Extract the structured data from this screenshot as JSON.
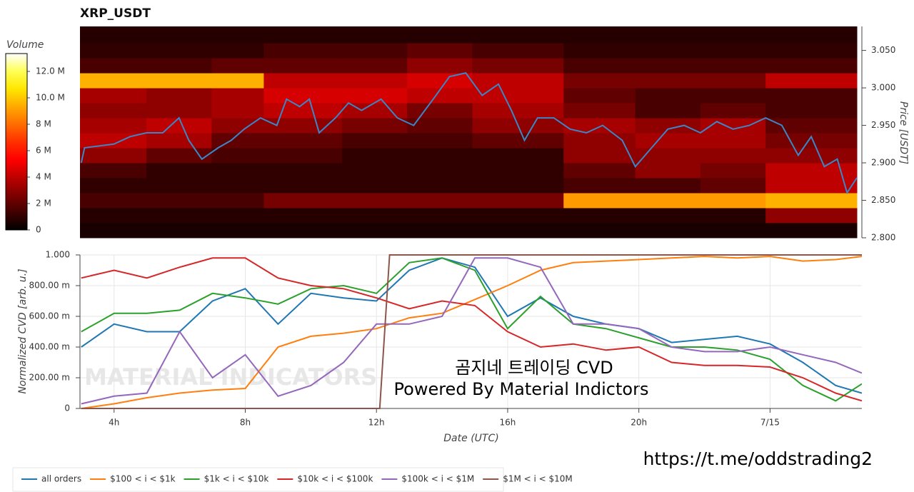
{
  "chart_data": [
    {
      "type": "heatmap",
      "title": "XRP_USDT",
      "ylabel": "Price [USDT]",
      "colorbar": {
        "title": "Volume",
        "zlim": [
          0,
          13.35
        ],
        "zticks": [
          0,
          {
            "value": 2,
            "label": "2 M"
          },
          {
            "value": 4,
            "label": "4 M"
          },
          {
            "value": 6,
            "label": "6 M"
          },
          {
            "value": 8,
            "label": "8 M"
          },
          {
            "value": 10,
            "label": "10.0 M"
          },
          {
            "value": 12,
            "label": "12.0 M"
          }
        ]
      },
      "xlim": [
        2.96,
        26.8
      ],
      "ylim": [
        2.8,
        3.082
      ],
      "yticks": [
        {
          "value": 2.8,
          "label": "2.800"
        },
        {
          "value": 2.85,
          "label": "2.850"
        },
        {
          "value": 2.9,
          "label": "2.900"
        },
        {
          "value": 2.95,
          "label": "2.950"
        },
        {
          "value": 3.0,
          "label": "3.000"
        },
        {
          "value": 3.05,
          "label": "3.050"
        }
      ],
      "x_bins": [
        2.96,
        5,
        7,
        8.6,
        11,
        13,
        15,
        17.8,
        20,
        22,
        24,
        26.8
      ],
      "y_bins": [
        2.8,
        2.82,
        2.84,
        2.86,
        2.88,
        2.9,
        2.92,
        2.94,
        2.96,
        2.98,
        3.0,
        3.02,
        3.04,
        3.06,
        3.082
      ],
      "z": [
        [
          0.5,
          0.5,
          0.5,
          0.5,
          0.5,
          0.5,
          0.5,
          0.5,
          0.5,
          0.5,
          0.5
        ],
        [
          0.8,
          0.8,
          0.8,
          0.8,
          0.8,
          0.8,
          0.8,
          0.8,
          0.8,
          0.8,
          3
        ],
        [
          1.5,
          1.5,
          1.5,
          2.5,
          2.5,
          2.5,
          2.5,
          9,
          9,
          9,
          9.5
        ],
        [
          1,
          1,
          1,
          1,
          1,
          1,
          1,
          1.5,
          1.5,
          2,
          4
        ],
        [
          1.5,
          1,
          1,
          1,
          1,
          1,
          1,
          2,
          3,
          2.5,
          4
        ],
        [
          3,
          2,
          1.5,
          1.5,
          1,
          1,
          1,
          3,
          3,
          3,
          3
        ],
        [
          4,
          3.5,
          2,
          2,
          1.5,
          1.5,
          2,
          3,
          3.5,
          3.5,
          2.5
        ],
        [
          3.5,
          4,
          3,
          3,
          2.5,
          2,
          3,
          3.5,
          3,
          3.5,
          2
        ],
        [
          3,
          3,
          3.5,
          4,
          3.5,
          2.5,
          3.5,
          2.5,
          1.5,
          2,
          1.5
        ],
        [
          3.5,
          3,
          3.5,
          4.5,
          4.5,
          4,
          4,
          2,
          1.5,
          1.5,
          1.5
        ],
        [
          9.5,
          9.5,
          9.5,
          4,
          4,
          4.5,
          4,
          2.5,
          2.5,
          2.5,
          4
        ],
        [
          1.5,
          1.5,
          2,
          2,
          2,
          3,
          2.5,
          1.5,
          1.5,
          1.5,
          1.5
        ],
        [
          1,
          1,
          1,
          1.5,
          1.5,
          2,
          1.5,
          1,
          1,
          1,
          1
        ],
        [
          0.8,
          0.8,
          0.8,
          0.8,
          0.8,
          0.8,
          0.8,
          0.8,
          0.8,
          0.8,
          0.8
        ]
      ],
      "line": {
        "color": "#3a87c8",
        "x": [
          3.0,
          3.1,
          4,
          4.5,
          5,
          5.5,
          6,
          6.3,
          6.7,
          7.2,
          7.6,
          8,
          8.5,
          9,
          9.3,
          9.7,
          10,
          10.3,
          10.8,
          11.2,
          11.6,
          12.2,
          12.7,
          13.2,
          13.8,
          14.3,
          14.8,
          15.3,
          15.8,
          16.2,
          16.6,
          17,
          17.5,
          18,
          18.5,
          19,
          19.6,
          20,
          20.5,
          21,
          21.5,
          22,
          22.5,
          23,
          23.5,
          24,
          24.5,
          25,
          25.4,
          25.8,
          26.2,
          26.5,
          26.8
        ],
        "values": [
          2.9,
          2.92,
          2.925,
          2.935,
          2.94,
          2.94,
          2.96,
          2.93,
          2.905,
          2.92,
          2.93,
          2.945,
          2.96,
          2.95,
          2.985,
          2.975,
          2.985,
          2.94,
          2.96,
          2.98,
          2.97,
          2.985,
          2.96,
          2.95,
          2.985,
          3.015,
          3.02,
          2.99,
          3.005,
          2.97,
          2.93,
          2.96,
          2.96,
          2.945,
          2.94,
          2.95,
          2.93,
          2.895,
          2.92,
          2.945,
          2.95,
          2.94,
          2.955,
          2.945,
          2.95,
          2.96,
          2.95,
          2.91,
          2.935,
          2.895,
          2.905,
          2.86,
          2.88
        ]
      }
    },
    {
      "type": "line",
      "xlabel": "Date (UTC)",
      "ylabel": "Normalized CVD [arb. u.]",
      "grid": true,
      "legend": "bottom-left",
      "xlim": [
        2.96,
        26.8
      ],
      "xticks": [
        {
          "value": 4,
          "label": "4h"
        },
        {
          "value": 8,
          "label": "8h"
        },
        {
          "value": 12,
          "label": "12h"
        },
        {
          "value": 16,
          "label": "16h"
        },
        {
          "value": 20,
          "label": "20h"
        },
        {
          "value": 24,
          "label": "7/15"
        }
      ],
      "ylim": [
        0,
        1
      ],
      "yticks": [
        0,
        {
          "value": 0.2,
          "label": "200.00 m"
        },
        {
          "value": 0.4,
          "label": "400.00 m"
        },
        {
          "value": 0.6,
          "label": "600.00 m"
        },
        {
          "value": 0.8,
          "label": "800.00 m"
        },
        {
          "value": 1,
          "label": "1.000"
        }
      ],
      "x": [
        3,
        4,
        5,
        6,
        7,
        8,
        9,
        10,
        11,
        12,
        13,
        14,
        15,
        16,
        17,
        18,
        19,
        20,
        21,
        22,
        23,
        24,
        25,
        26,
        26.8
      ],
      "series": [
        {
          "name": "all orders",
          "color": "#1f77b4",
          "values": [
            0.4,
            0.55,
            0.5,
            0.5,
            0.7,
            0.78,
            0.55,
            0.75,
            0.72,
            0.7,
            0.9,
            0.98,
            0.92,
            0.6,
            0.72,
            0.6,
            0.55,
            0.52,
            0.43,
            0.45,
            0.47,
            0.42,
            0.3,
            0.15,
            0.1
          ]
        },
        {
          "name": "$100 < i < $1k",
          "color": "#ff7f0e",
          "values": [
            0,
            0.03,
            0.07,
            0.1,
            0.12,
            0.13,
            0.4,
            0.47,
            0.49,
            0.52,
            0.59,
            0.62,
            0.71,
            0.8,
            0.9,
            0.95,
            0.96,
            0.97,
            0.98,
            0.99,
            0.98,
            0.99,
            0.96,
            0.97,
            0.99
          ]
        },
        {
          "name": "$1k < i < $10k",
          "color": "#2ca02c",
          "values": [
            0.5,
            0.62,
            0.62,
            0.64,
            0.75,
            0.72,
            0.68,
            0.78,
            0.8,
            0.75,
            0.95,
            0.98,
            0.9,
            0.52,
            0.73,
            0.55,
            0.52,
            0.46,
            0.4,
            0.4,
            0.38,
            0.32,
            0.15,
            0.05,
            0.16
          ]
        },
        {
          "name": "$10k < i < $100k",
          "color": "#d62728",
          "values": [
            0.85,
            0.9,
            0.85,
            0.92,
            0.98,
            0.98,
            0.85,
            0.8,
            0.78,
            0.72,
            0.65,
            0.7,
            0.67,
            0.5,
            0.4,
            0.42,
            0.38,
            0.4,
            0.3,
            0.28,
            0.28,
            0.27,
            0.2,
            0.1,
            0.05
          ]
        },
        {
          "name": "$100k < i < $1M",
          "color": "#9467bd",
          "values": [
            0.03,
            0.08,
            0.1,
            0.5,
            0.2,
            0.35,
            0.08,
            0.15,
            0.3,
            0.55,
            0.55,
            0.6,
            0.98,
            0.98,
            0.92,
            0.55,
            0.55,
            0.52,
            0.4,
            0.37,
            0.37,
            0.4,
            0.35,
            0.3,
            0.23
          ]
        },
        {
          "name": "$1M < i < $10M",
          "color": "#8c564b",
          "x": [
            3,
            12.1,
            12.4,
            26.8
          ],
          "values": [
            0,
            0,
            1,
            1
          ]
        }
      ]
    }
  ],
  "annotations": {
    "watermark": "MATERIAL INDICATORS",
    "caption": "곰지네 트레이딩 CVD",
    "subcaption": "Powered By Material Indictors",
    "link": "https://t.me/oddstrading2"
  }
}
